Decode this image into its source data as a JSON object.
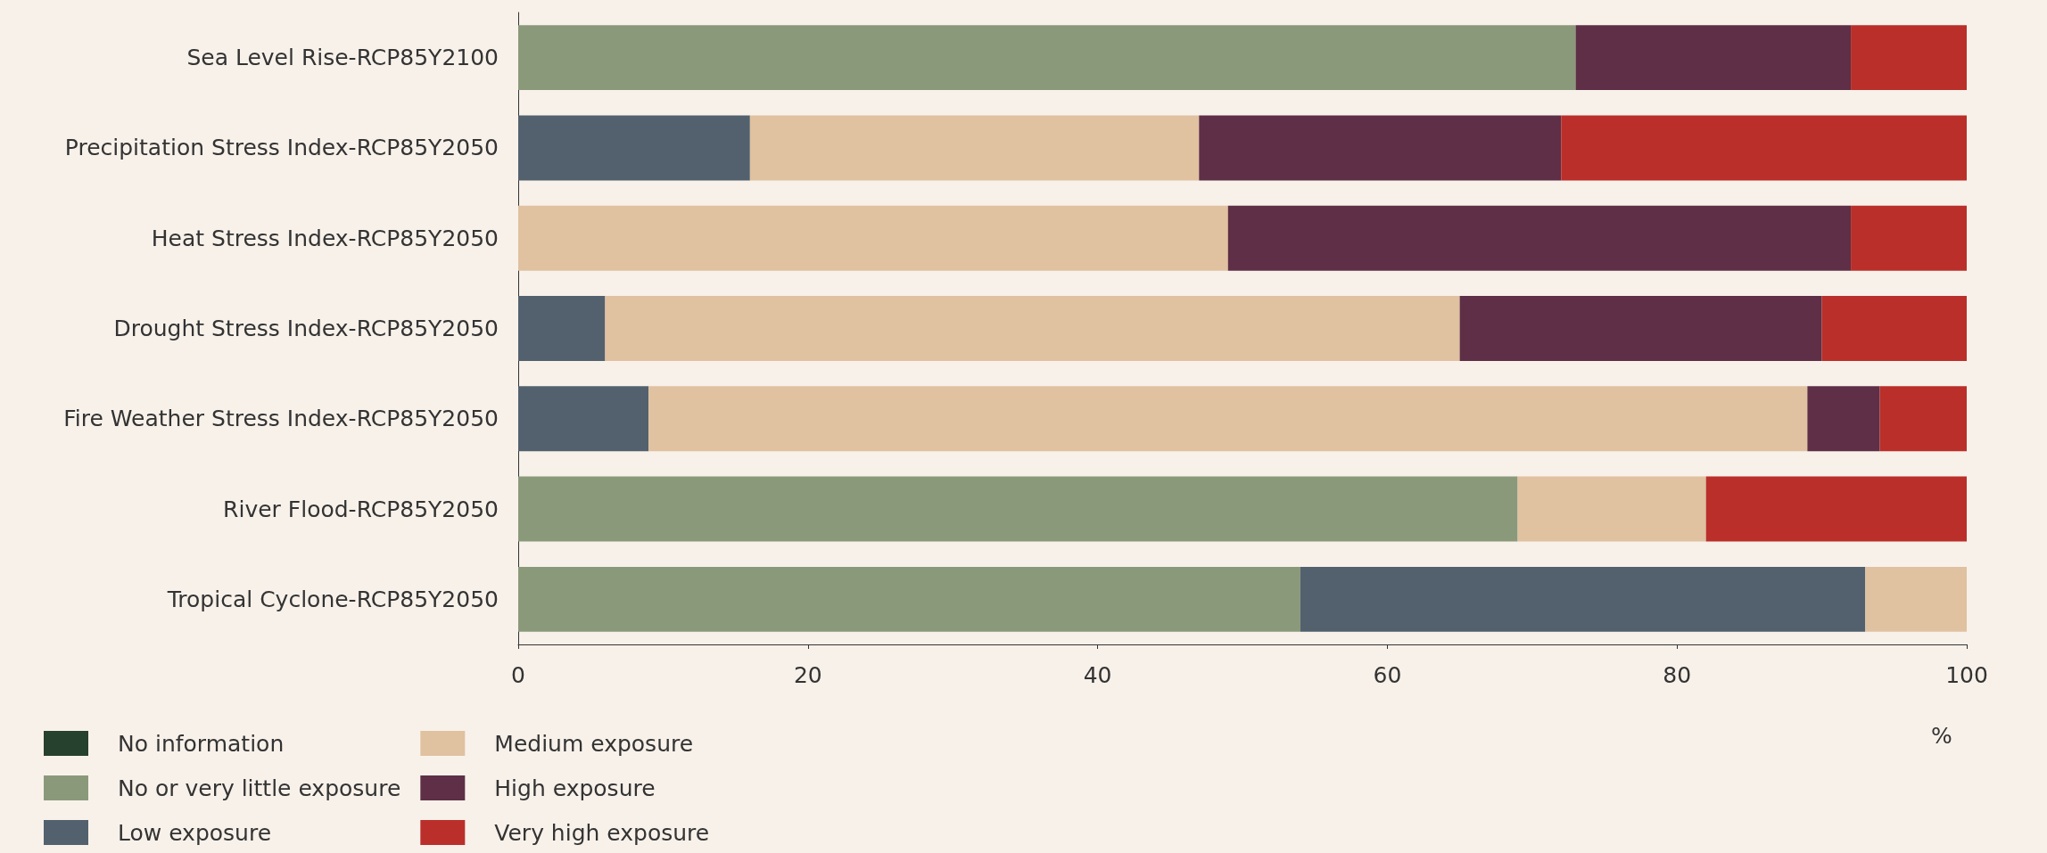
{
  "chart_data": {
    "type": "bar",
    "orientation": "horizontal",
    "stacked": true,
    "categories": [
      "Sea Level Rise-RCP85Y2100",
      "Precipitation Stress Index-RCP85Y2050",
      "Heat Stress Index-RCP85Y2050",
      "Drought Stress Index-RCP85Y2050",
      "Fire Weather Stress Index-RCP85Y2050",
      "River Flood-RCP85Y2050",
      "Tropical Cyclone-RCP85Y2050"
    ],
    "series": [
      {
        "name": "No information",
        "color": "#27412f",
        "values": [
          null,
          null,
          null,
          null,
          null,
          null,
          null
        ]
      },
      {
        "name": "No or very little exposure",
        "color": "#8b997b",
        "values": [
          73,
          null,
          null,
          null,
          null,
          69,
          54
        ]
      },
      {
        "name": "Low exposure",
        "color": "#52616d",
        "values": [
          null,
          16,
          null,
          6,
          9,
          null,
          39
        ]
      },
      {
        "name": "Medium exposure",
        "color": "#e0c1a0",
        "values": [
          null,
          31,
          49,
          59,
          80,
          13,
          7
        ]
      },
      {
        "name": "High exposure",
        "color": "#5e2f46",
        "values": [
          19,
          25,
          43,
          25,
          5,
          null,
          null
        ]
      },
      {
        "name": "Very high exposure",
        "color": "#ba2f2a",
        "values": [
          8,
          28,
          8,
          10,
          6,
          18,
          null
        ]
      }
    ],
    "xlabel": "%",
    "xlim": [
      0,
      100
    ],
    "xticks": [
      0,
      20,
      40,
      60,
      80,
      100
    ],
    "grid": false,
    "legend": "bottom left"
  }
}
